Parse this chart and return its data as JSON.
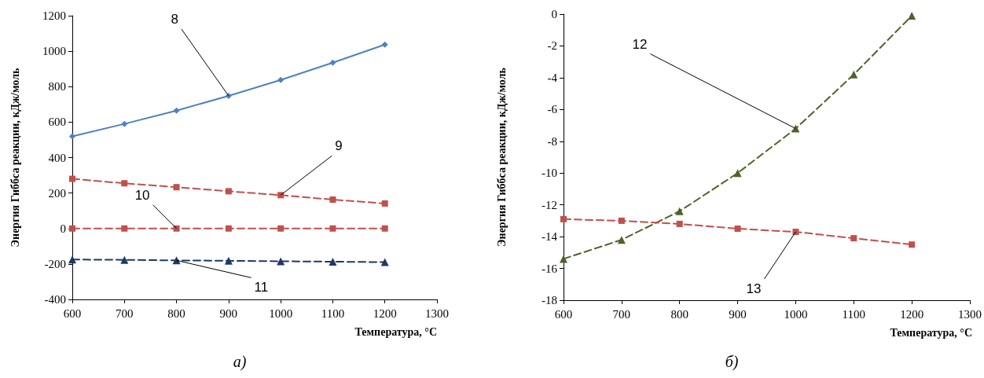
{
  "chart_data": [
    {
      "type": "line",
      "title": "а)",
      "xlabel": "Температура, °С",
      "ylabel": "Энергия Гиббса реакции, кДж/моль",
      "x": [
        600,
        700,
        800,
        900,
        1000,
        1100,
        1200
      ],
      "xlim": [
        600,
        1300
      ],
      "xticks": [
        600,
        700,
        800,
        900,
        1000,
        1100,
        1200,
        1300
      ],
      "ylim": [
        -400,
        1200
      ],
      "yticks": [
        -400,
        -200,
        0,
        200,
        400,
        600,
        800,
        1000,
        1200
      ],
      "grid": false,
      "series": [
        {
          "color": "#4f81bd",
          "marker": "diamond",
          "line_style": "solid",
          "values": [
            520,
            590,
            665,
            748,
            838,
            935,
            1037
          ]
        },
        {
          "color": "#c0504d",
          "marker": "square",
          "line_style": "dashed",
          "values": [
            280,
            255,
            233,
            210,
            188,
            163,
            141
          ]
        },
        {
          "color": "#c0504d",
          "marker": "square",
          "line_style": "dashed",
          "values": [
            0,
            0,
            0,
            0,
            0,
            0,
            0
          ]
        },
        {
          "color": "#1f3864",
          "marker": "triangle",
          "line_style": "dashed",
          "values": [
            -175,
            -177,
            -180,
            -182,
            -185,
            -187,
            -190
          ]
        }
      ],
      "annotations": [
        {
          "text": "8",
          "x": 900,
          "y": 748
        },
        {
          "text": "9",
          "x": 1000,
          "y": 188
        },
        {
          "text": "10",
          "x": 800,
          "y": 0
        },
        {
          "text": "11",
          "x": 800,
          "y": -180
        }
      ]
    },
    {
      "type": "line",
      "title": "б)",
      "xlabel": "Температура, °С",
      "ylabel": "Энергия Гиббса реакции, кДж/моль",
      "x": [
        600,
        700,
        800,
        900,
        1000,
        1100,
        1200
      ],
      "xlim": [
        600,
        1300
      ],
      "xticks": [
        600,
        700,
        800,
        900,
        1000,
        1100,
        1200,
        1300
      ],
      "ylim": [
        -18,
        0
      ],
      "yticks": [
        -18,
        -16,
        -14,
        -12,
        -10,
        -8,
        -6,
        -4,
        -2,
        0
      ],
      "grid": false,
      "series": [
        {
          "color": "#4f6228",
          "marker": "triangle",
          "line_style": "dashed",
          "values": [
            -15.4,
            -14.2,
            -12.4,
            -10.0,
            -7.2,
            -3.8,
            -0.1
          ]
        },
        {
          "color": "#c0504d",
          "marker": "square",
          "line_style": "dashed",
          "values": [
            -12.9,
            -13.0,
            -13.2,
            -13.5,
            -13.7,
            -14.1,
            -14.5
          ]
        }
      ],
      "annotations": [
        {
          "text": "12",
          "x": 1000,
          "y": -7.2
        },
        {
          "text": "13",
          "x": 1000,
          "y": -13.7
        }
      ]
    }
  ]
}
